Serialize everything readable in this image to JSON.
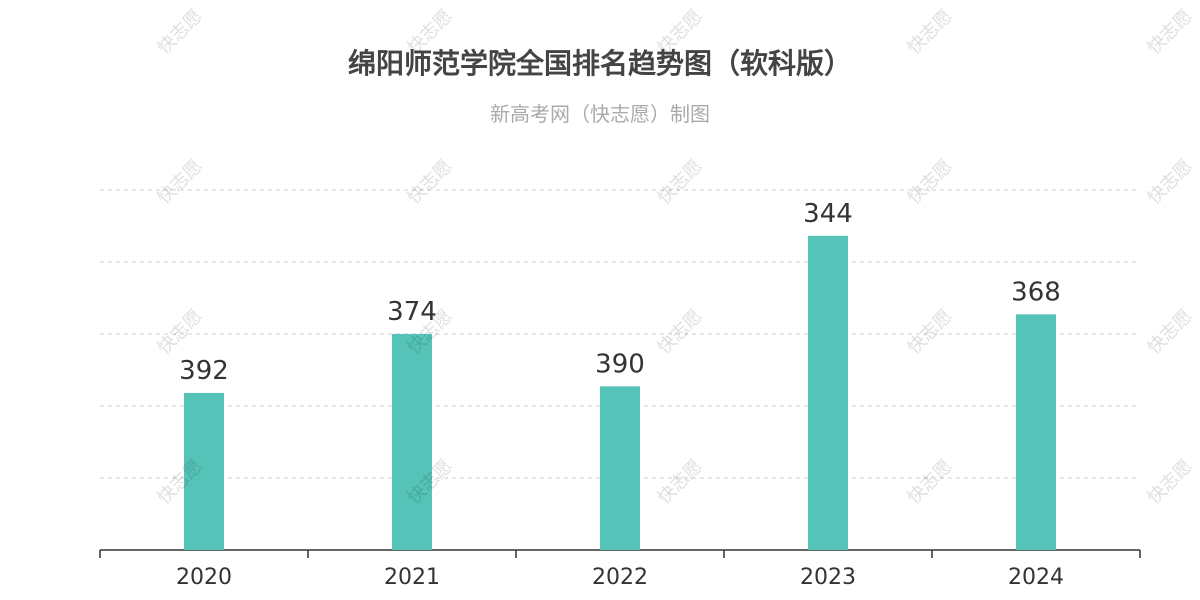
{
  "title": "绵阳师范学院全国排名趋势图（软科版）",
  "subtitle": "新高考网（快志愿）制图",
  "watermark": "快志愿",
  "colors": {
    "bar": "#55c3b8",
    "grid": "#cccccc",
    "axis": "#333333",
    "label": "#333333"
  },
  "chart_data": {
    "type": "bar",
    "title": "绵阳师范学院全国排名趋势图（软科版）",
    "subtitle": "新高考网（快志愿）制图",
    "categories": [
      "2020",
      "2021",
      "2022",
      "2023",
      "2024"
    ],
    "values": [
      392,
      374,
      390,
      344,
      368
    ],
    "data_labels": [
      "392",
      "374",
      "390",
      "344",
      "368"
    ],
    "y_axis": "inverted ranking",
    "ylim": [
      440,
      330
    ],
    "grid": true,
    "legend": "none"
  }
}
